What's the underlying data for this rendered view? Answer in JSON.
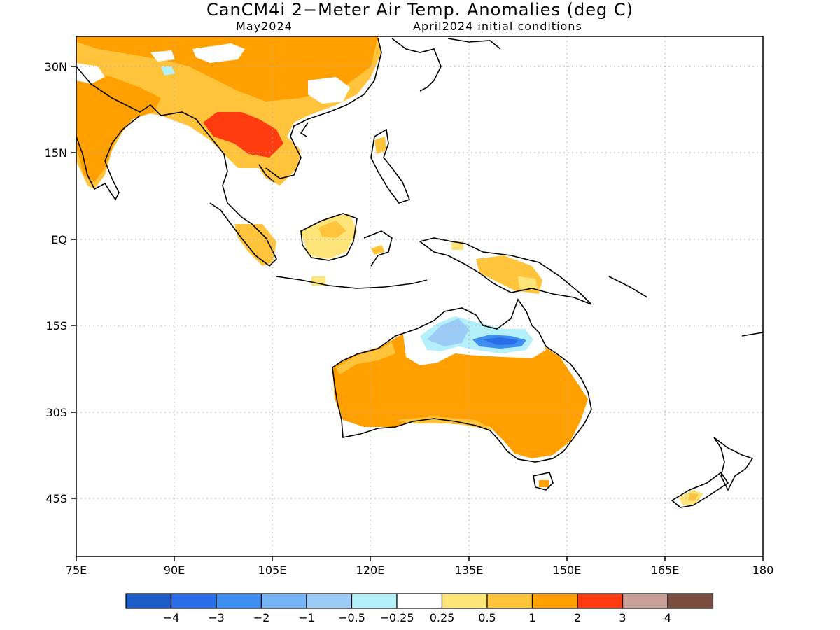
{
  "title": "CanCM4i 2−Meter Air Temp. Anomalies (deg C)",
  "subtitle_left": "May2024",
  "subtitle_right": "April2024 initial conditions",
  "map": {
    "lon_range": [
      75,
      180
    ],
    "lat_range": [
      -55,
      35
    ],
    "lat_ticks": [
      "30N",
      "15N",
      "EQ",
      "15S",
      "30S",
      "45S"
    ],
    "lon_ticks": [
      "75E",
      "90E",
      "105E",
      "120E",
      "135E",
      "150E",
      "165E",
      "180"
    ],
    "grid": "dotted"
  },
  "colorbar": {
    "colors": [
      "#1a5cc8",
      "#2a6de8",
      "#3d8ef0",
      "#74b4f7",
      "#9ccbf8",
      "#b4f0fa",
      "#ffffff",
      "#ffe47a",
      "#ffc43c",
      "#ffa000",
      "#ff3c10",
      "#c8a096",
      "#7a4d3f"
    ],
    "labels": [
      "−4",
      "−3",
      "−2",
      "−1",
      "−0.5",
      "−0.25",
      "0.25",
      "0.5",
      "1",
      "2",
      "3",
      "4"
    ]
  }
}
